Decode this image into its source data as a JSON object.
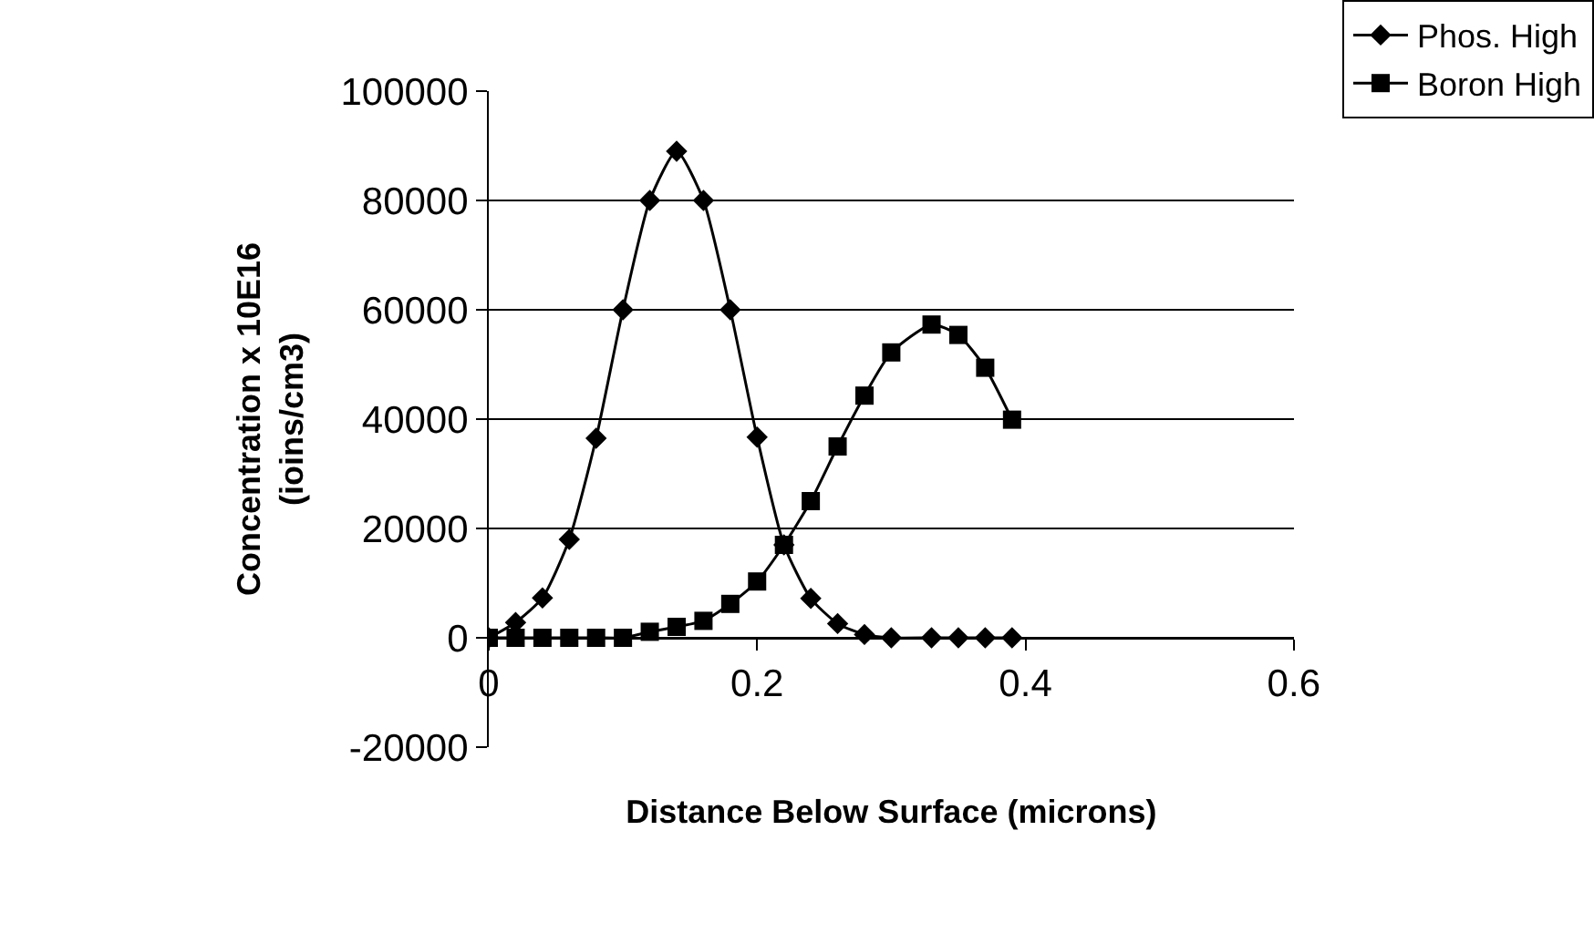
{
  "chart_data": {
    "type": "line",
    "xlabel": "Distance Below Surface (microns)",
    "ylabel": "Concentration x 10E16\n(ioins/cm3)",
    "x": [
      0,
      0.02,
      0.04,
      0.06,
      0.08,
      0.1,
      0.12,
      0.14,
      0.16,
      0.18,
      0.2,
      0.22,
      0.24,
      0.26,
      0.28,
      0.3,
      0.33,
      0.35,
      0.37,
      0.39
    ],
    "series": [
      {
        "name": "Phos. High",
        "color": "#000000",
        "marker": "diamond",
        "values": [
          0,
          2800,
          7300,
          18000,
          36500,
          60000,
          80000,
          89000,
          80000,
          60000,
          36700,
          17000,
          7200,
          2600,
          600,
          0,
          0,
          0,
          0,
          0
        ]
      },
      {
        "name": "Boron High",
        "color": "#000000",
        "marker": "square",
        "values": [
          0,
          0,
          0,
          0,
          0,
          0,
          1100,
          2000,
          3100,
          6200,
          10300,
          17000,
          25000,
          35000,
          44300,
          52200,
          57300,
          55400,
          49400,
          39900
        ]
      }
    ],
    "xlim": [
      0,
      0.6
    ],
    "xticks": [
      0,
      0.2,
      0.4,
      0.6
    ],
    "ylim": [
      -20000,
      100000
    ],
    "yticks": [
      -20000,
      0,
      20000,
      40000,
      60000,
      80000,
      100000
    ],
    "grid": "y",
    "legend": "top right",
    "line_style": "solid"
  }
}
